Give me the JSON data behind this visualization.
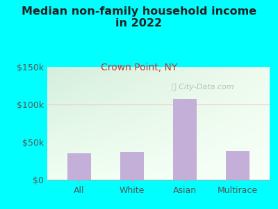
{
  "title": "Median non-family household income\nin 2022",
  "subtitle": "Crown Point, NY",
  "categories": [
    "All",
    "White",
    "Asian",
    "Multirace"
  ],
  "values": [
    35000,
    37000,
    107000,
    38000
  ],
  "bar_color": "#c4afd8",
  "background_outer": "#00FFFF",
  "background_inner_topleft": "#d4eedd",
  "background_inner_topright": "#eef8ee",
  "background_inner_bottom": "#f8fff8",
  "title_fontsize": 11.5,
  "subtitle_fontsize": 10,
  "tick_color": "#555555",
  "ylim": [
    0,
    150000
  ],
  "yticks": [
    0,
    50000,
    100000,
    150000
  ],
  "ytick_labels": [
    "$0",
    "$50k",
    "$100k",
    "$150k"
  ],
  "gridline_100k_color": "#e8c8c8",
  "watermark": "City-Data.com"
}
